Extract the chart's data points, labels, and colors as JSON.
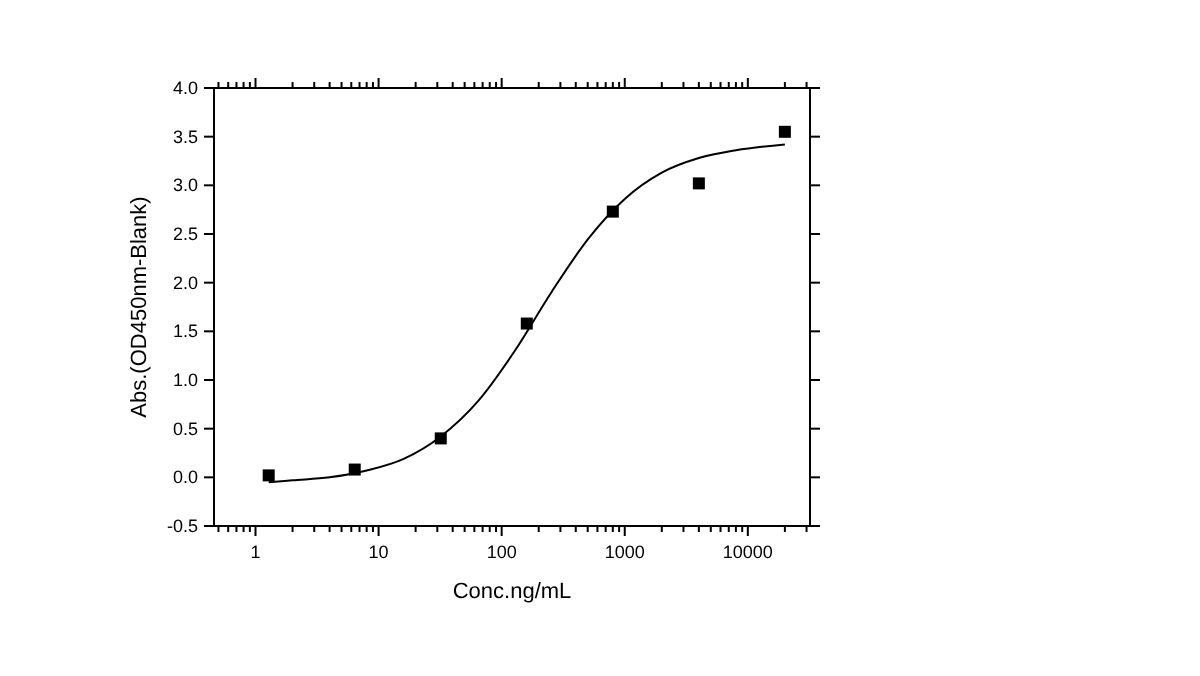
{
  "chart_data": {
    "type": "scatter",
    "xlabel": "Conc.ng/mL",
    "ylabel": "Abs.(OD450nm-Blank)",
    "log": "x",
    "xlim": [
      0.46,
      32000
    ],
    "xticks": [
      1,
      10,
      100,
      1000,
      10000
    ],
    "ylim": [
      -0.5,
      4
    ],
    "yticks": [
      -0.5,
      {
        "value": 0,
        "label": "0.0"
      },
      0.5,
      {
        "value": 1,
        "label": "1.0"
      },
      1.5,
      {
        "value": 2,
        "label": "2.0"
      },
      2.5,
      {
        "value": 3,
        "label": "3.0"
      },
      3.5,
      {
        "value": 4,
        "label": "4.0"
      }
    ],
    "grid": false,
    "marker": "square",
    "series": [
      {
        "color": "#000000",
        "x": [
          1.28,
          6.4,
          32,
          160,
          800,
          4000,
          20000
        ],
        "values": [
          0.02,
          0.08,
          0.4,
          1.58,
          2.73,
          3.02,
          3.55
        ]
      },
      {
        "type": "line",
        "color": "#000000",
        "marker": "none",
        "line_style": "solid",
        "x": [
          1.28,
          2,
          4,
          8,
          16,
          32,
          64,
          128,
          256,
          512,
          1000,
          2000,
          4000,
          8000,
          20000
        ],
        "values": [
          -0.05,
          -0.03,
          0.0,
          0.07,
          0.19,
          0.42,
          0.78,
          1.3,
          1.91,
          2.46,
          2.86,
          3.13,
          3.28,
          3.36,
          3.42
        ]
      }
    ]
  }
}
